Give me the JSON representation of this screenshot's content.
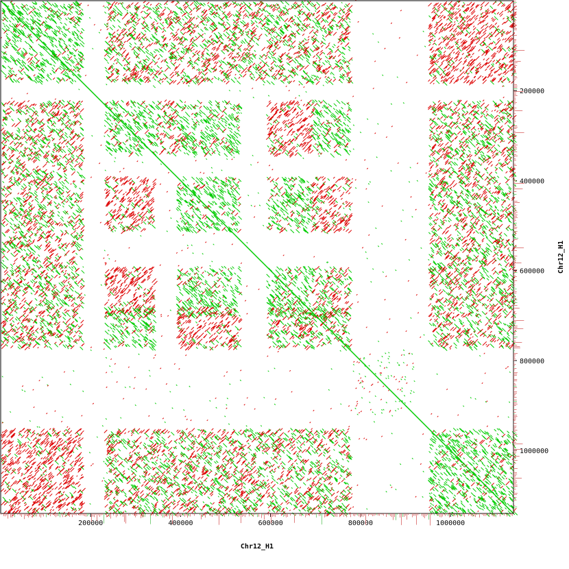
{
  "chart_data": {
    "type": "scatter",
    "subtype": "self dot-plot (sequence alignment)",
    "xlabel": "Chr12_H1",
    "ylabel": "Chr12_H1",
    "xlim": [
      0,
      1140000
    ],
    "ylim": [
      0,
      1140000
    ],
    "y_inverted": true,
    "x_ticks": [
      200000,
      400000,
      600000,
      800000,
      1000000
    ],
    "x_tick_labels": [
      "200000",
      "400000",
      "600000",
      "800000",
      "1000000"
    ],
    "y_ticks": [
      200000,
      400000,
      600000,
      800000,
      1000000
    ],
    "y_tick_labels": [
      "200000",
      "400000",
      "600000",
      "800000",
      "1000000"
    ],
    "grid": false,
    "legend": "none",
    "series": [
      {
        "color": "#00cc00",
        "orientation": "forward"
      },
      {
        "color": "#dd0000",
        "orientation": "reverse"
      }
    ],
    "main_diagonal": {
      "from": [
        0,
        0
      ],
      "to": [
        1140000,
        1140000
      ]
    },
    "repeat_blocks": [
      {
        "x": [
          230000,
          340000
        ],
        "y": [
          220000,
          340000
        ],
        "dominant": "forward"
      },
      {
        "x": [
          340000,
          390000
        ],
        "y": [
          220000,
          340000
        ],
        "dominant": "mixed"
      },
      {
        "x": [
          390000,
          530000
        ],
        "y": [
          220000,
          340000
        ],
        "dominant": "forward"
      },
      {
        "x": [
          590000,
          690000
        ],
        "y": [
          220000,
          340000
        ],
        "dominant": "reverse"
      },
      {
        "x": [
          690000,
          775000
        ],
        "y": [
          220000,
          340000
        ],
        "dominant": "forward"
      },
      {
        "x": [
          230000,
          340000
        ],
        "y": [
          390000,
          510000
        ],
        "dominant": "reverse"
      },
      {
        "x": [
          390000,
          530000
        ],
        "y": [
          390000,
          510000
        ],
        "dominant": "forward"
      },
      {
        "x": [
          590000,
          690000
        ],
        "y": [
          390000,
          510000
        ],
        "dominant": "forward"
      },
      {
        "x": [
          690000,
          775000
        ],
        "y": [
          390000,
          510000
        ],
        "dominant": "reverse"
      },
      {
        "x": [
          230000,
          340000
        ],
        "y": [
          590000,
          700000
        ],
        "dominant": "reverse"
      },
      {
        "x": [
          390000,
          530000
        ],
        "y": [
          590000,
          700000
        ],
        "dominant": "forward"
      },
      {
        "x": [
          590000,
          690000
        ],
        "y": [
          590000,
          700000
        ],
        "dominant": "forward"
      },
      {
        "x": [
          690000,
          775000
        ],
        "y": [
          590000,
          700000
        ],
        "dominant": "mixed"
      },
      {
        "x": [
          230000,
          340000
        ],
        "y": [
          680000,
          770000
        ],
        "dominant": "forward"
      },
      {
        "x": [
          390000,
          530000
        ],
        "y": [
          680000,
          770000
        ],
        "dominant": "reverse"
      },
      {
        "x": [
          590000,
          775000
        ],
        "y": [
          680000,
          770000
        ],
        "dominant": "mixed"
      },
      {
        "x": [
          0,
          180000
        ],
        "y": [
          0,
          180000
        ],
        "dominant": "forward"
      },
      {
        "x": [
          950000,
          1140000
        ],
        "y": [
          0,
          180000
        ],
        "dominant": "reverse"
      },
      {
        "x": [
          0,
          180000
        ],
        "y": [
          950000,
          1140000
        ],
        "dominant": "reverse"
      },
      {
        "x": [
          950000,
          1140000
        ],
        "y": [
          950000,
          1140000
        ],
        "dominant": "forward"
      },
      {
        "x": [
          0,
          180000
        ],
        "y": [
          220000,
          770000
        ],
        "dominant": "mixed"
      },
      {
        "x": [
          950000,
          1140000
        ],
        "y": [
          220000,
          770000
        ],
        "dominant": "mixed"
      },
      {
        "x": [
          230000,
          775000
        ],
        "y": [
          0,
          180000
        ],
        "dominant": "mixed"
      },
      {
        "x": [
          230000,
          775000
        ],
        "y": [
          950000,
          1140000
        ],
        "dominant": "mixed"
      },
      {
        "x": [
          780000,
          920000
        ],
        "y": [
          780000,
          920000
        ],
        "dominant": "sparse"
      }
    ]
  }
}
